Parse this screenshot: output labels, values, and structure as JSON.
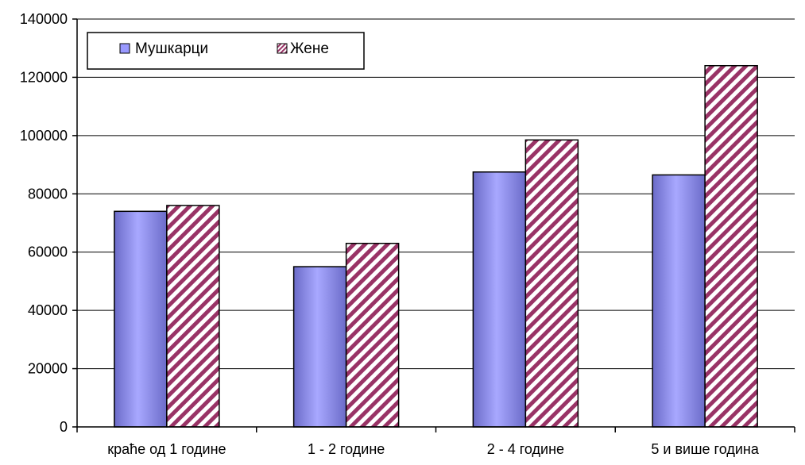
{
  "chart_data": {
    "type": "bar",
    "categories": [
      "краће од 1 године",
      "1 - 2 године",
      "2 - 4 године",
      "5 и више година"
    ],
    "series": [
      {
        "name": "Мушкарци",
        "values": [
          74000,
          55000,
          87500,
          86500
        ],
        "color": "#9999ff",
        "pattern": "solid-gradient"
      },
      {
        "name": "Жене",
        "values": [
          76000,
          63000,
          98500,
          124000
        ],
        "color": "#993366",
        "pattern": "diagonal-stripes"
      }
    ],
    "y_ticks": [
      "0",
      "20000",
      "40000",
      "60000",
      "80000",
      "100000",
      "120000",
      "140000"
    ],
    "ylim": [
      0,
      140000
    ],
    "grid": true,
    "legend_position": "top-left"
  }
}
